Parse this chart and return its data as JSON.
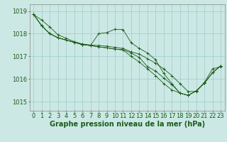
{
  "bg_color": "#cce8e4",
  "grid_color": "#99cccc",
  "line_color": "#1a5c1a",
  "xlabel": "Graphe pression niveau de la mer (hPa)",
  "xlabel_fontsize": 7,
  "tick_fontsize": 6,
  "ylim": [
    1014.6,
    1019.3
  ],
  "xlim": [
    -0.5,
    23.5
  ],
  "yticks": [
    1015,
    1016,
    1017,
    1018,
    1019
  ],
  "xticks": [
    0,
    1,
    2,
    3,
    4,
    5,
    6,
    7,
    8,
    9,
    10,
    11,
    12,
    13,
    14,
    15,
    16,
    17,
    18,
    19,
    20,
    21,
    22,
    23
  ],
  "lines": [
    [
      1018.85,
      1018.6,
      1018.3,
      1017.95,
      1017.8,
      1017.65,
      1017.55,
      1017.5,
      1017.48,
      1017.45,
      1017.4,
      1017.35,
      1017.2,
      1017.1,
      1016.9,
      1016.7,
      1016.45,
      1016.15,
      1015.8,
      1015.45,
      1015.45,
      1015.85,
      1016.45,
      1016.55
    ],
    [
      1018.85,
      1018.35,
      1018.0,
      1017.82,
      1017.72,
      1017.62,
      1017.52,
      1017.48,
      1018.0,
      1018.05,
      1018.2,
      1018.18,
      1017.6,
      1017.35,
      1017.15,
      1016.85,
      1016.25,
      1015.8,
      1015.38,
      1015.28,
      1015.48,
      1015.82,
      1016.28,
      1016.58
    ],
    [
      1018.85,
      1018.35,
      1018.0,
      1017.82,
      1017.72,
      1017.62,
      1017.52,
      1017.48,
      1017.42,
      1017.38,
      1017.32,
      1017.3,
      1017.15,
      1016.95,
      1016.55,
      1016.35,
      1016.05,
      1015.75,
      1015.38,
      1015.28,
      1015.48,
      1015.82,
      1016.28,
      1016.58
    ],
    [
      1018.85,
      1018.35,
      1018.0,
      1017.82,
      1017.72,
      1017.62,
      1017.52,
      1017.48,
      1017.42,
      1017.38,
      1017.32,
      1017.28,
      1017.0,
      1016.75,
      1016.45,
      1016.15,
      1015.8,
      1015.52,
      1015.38,
      1015.28,
      1015.48,
      1015.82,
      1016.28,
      1016.58
    ]
  ]
}
